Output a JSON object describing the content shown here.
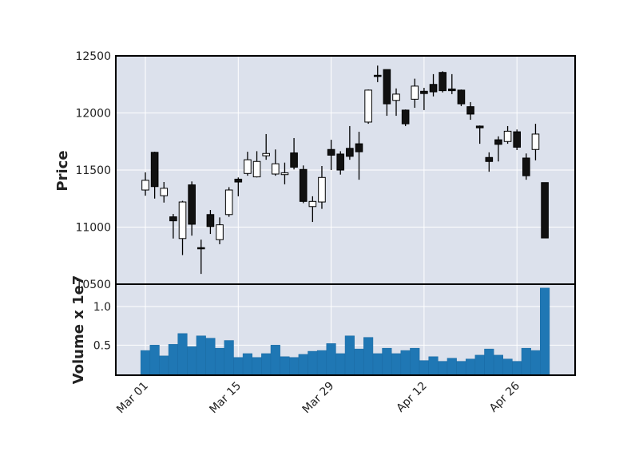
{
  "chart_data": [
    {
      "type": "candlestick",
      "panel": "price",
      "ylabel": "Price",
      "ylim": [
        10500,
        12500
      ],
      "yticks": [
        10500,
        11000,
        11500,
        12000,
        12500
      ],
      "xticks": [
        "Mar 01",
        "Mar 15",
        "Mar 29",
        "Apr 12",
        "Apr 26"
      ],
      "xtick_candle_index": [
        0,
        10,
        20,
        30,
        40
      ],
      "grid": true,
      "up_color": "#ffffff",
      "down_color": "#111111",
      "ohlc": [
        [
          11325,
          11480,
          11275,
          11410
        ],
        [
          11655,
          11660,
          11250,
          11355
        ],
        [
          11275,
          11395,
          11215,
          11340
        ],
        [
          11090,
          11115,
          10900,
          11055
        ],
        [
          10900,
          11230,
          10755,
          11220
        ],
        [
          11370,
          11400,
          10925,
          11025
        ],
        [
          10820,
          10890,
          10590,
          10810
        ],
        [
          11110,
          11150,
          10940,
          11005
        ],
        [
          10890,
          11085,
          10850,
          11020
        ],
        [
          11110,
          11350,
          11090,
          11325
        ],
        [
          11420,
          11435,
          11270,
          11395
        ],
        [
          11470,
          11660,
          11450,
          11590
        ],
        [
          11440,
          11665,
          11435,
          11575
        ],
        [
          11625,
          11815,
          11590,
          11645
        ],
        [
          11465,
          11680,
          11450,
          11555
        ],
        [
          11460,
          11565,
          11375,
          11475
        ],
        [
          11650,
          11780,
          11505,
          11525
        ],
        [
          11505,
          11540,
          11210,
          11225
        ],
        [
          11180,
          11270,
          11045,
          11225
        ],
        [
          11220,
          11535,
          11160,
          11435
        ],
        [
          11680,
          11765,
          11500,
          11630
        ],
        [
          11640,
          11665,
          11460,
          11500
        ],
        [
          11690,
          11885,
          11590,
          11620
        ],
        [
          11730,
          11835,
          11415,
          11660
        ],
        [
          11920,
          12205,
          11905,
          12200
        ],
        [
          12330,
          12415,
          12270,
          12325
        ],
        [
          12380,
          12380,
          11975,
          12080
        ],
        [
          12110,
          12215,
          11975,
          12165
        ],
        [
          12025,
          12030,
          11885,
          11905
        ],
        [
          12120,
          12300,
          12045,
          12235
        ],
        [
          12190,
          12220,
          12025,
          12170
        ],
        [
          12250,
          12340,
          12145,
          12185
        ],
        [
          12355,
          12365,
          12180,
          12195
        ],
        [
          12210,
          12340,
          12165,
          12195
        ],
        [
          12200,
          12205,
          12060,
          12080
        ],
        [
          12055,
          12095,
          11940,
          11990
        ],
        [
          11885,
          11890,
          11730,
          11870
        ],
        [
          11610,
          11655,
          11485,
          11575
        ],
        [
          11765,
          11795,
          11575,
          11725
        ],
        [
          11750,
          11885,
          11730,
          11840
        ],
        [
          11835,
          11855,
          11675,
          11700
        ],
        [
          11605,
          11645,
          11415,
          11450
        ],
        [
          11680,
          11905,
          11585,
          11815
        ],
        [
          11390,
          11390,
          10905,
          10905
        ]
      ]
    },
    {
      "type": "bar",
      "panel": "volume",
      "ylabel": "Volume x 1e7",
      "ylim": [
        0.11,
        1.29
      ],
      "yticks": [
        0.5,
        1.0
      ],
      "ytick_labels": [
        "0.5",
        "1.0"
      ],
      "bar_color": "#1f77b4",
      "values": [
        0.43,
        0.5,
        0.36,
        0.51,
        0.65,
        0.48,
        0.62,
        0.59,
        0.46,
        0.56,
        0.34,
        0.39,
        0.34,
        0.39,
        0.5,
        0.35,
        0.34,
        0.38,
        0.42,
        0.43,
        0.52,
        0.39,
        0.62,
        0.45,
        0.6,
        0.39,
        0.46,
        0.39,
        0.43,
        0.46,
        0.3,
        0.35,
        0.29,
        0.33,
        0.29,
        0.32,
        0.37,
        0.45,
        0.37,
        0.32,
        0.29,
        0.46,
        0.43,
        1.24
      ]
    }
  ]
}
